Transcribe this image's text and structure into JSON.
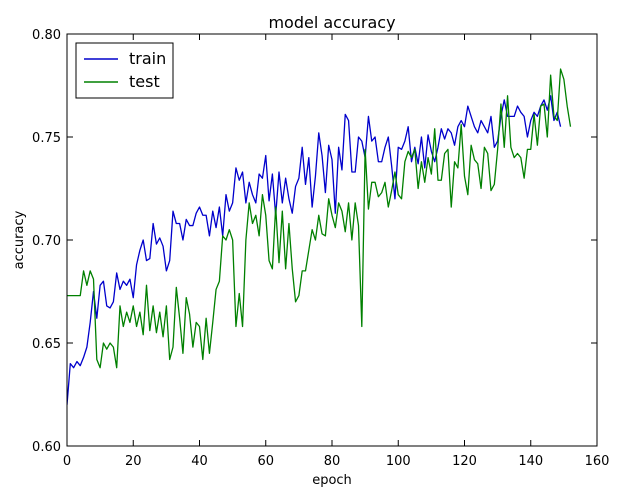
{
  "chart_data": {
    "type": "line",
    "title": "model accuracy",
    "xlabel": "epoch",
    "ylabel": "accuracy",
    "xlim": [
      0,
      160
    ],
    "ylim": [
      0.6,
      0.8
    ],
    "xticks": [
      0,
      20,
      40,
      60,
      80,
      100,
      120,
      140,
      160
    ],
    "yticks": [
      0.6,
      0.65,
      0.7,
      0.75,
      0.8
    ],
    "xtick_labels": [
      "0",
      "20",
      "40",
      "60",
      "80",
      "100",
      "120",
      "140",
      "160"
    ],
    "ytick_labels": [
      "0.60",
      "0.65",
      "0.70",
      "0.75",
      "0.80"
    ],
    "legend_position": "top-left",
    "grid": false,
    "series": [
      {
        "name": "train",
        "color": "#0000cc",
        "values": [
          0.62,
          0.64,
          0.638,
          0.641,
          0.639,
          0.643,
          0.648,
          0.66,
          0.675,
          0.662,
          0.678,
          0.68,
          0.668,
          0.667,
          0.67,
          0.684,
          0.676,
          0.68,
          0.678,
          0.681,
          0.672,
          0.688,
          0.695,
          0.7,
          0.69,
          0.691,
          0.708,
          0.698,
          0.701,
          0.697,
          0.685,
          0.69,
          0.714,
          0.708,
          0.708,
          0.7,
          0.71,
          0.707,
          0.707,
          0.713,
          0.716,
          0.712,
          0.712,
          0.702,
          0.714,
          0.706,
          0.716,
          0.702,
          0.722,
          0.714,
          0.718,
          0.735,
          0.729,
          0.733,
          0.718,
          0.728,
          0.722,
          0.718,
          0.732,
          0.73,
          0.741,
          0.719,
          0.732,
          0.712,
          0.733,
          0.718,
          0.73,
          0.72,
          0.713,
          0.726,
          0.73,
          0.745,
          0.727,
          0.74,
          0.716,
          0.731,
          0.752,
          0.741,
          0.723,
          0.746,
          0.739,
          0.713,
          0.745,
          0.734,
          0.761,
          0.758,
          0.733,
          0.733,
          0.75,
          0.748,
          0.74,
          0.76,
          0.748,
          0.75,
          0.738,
          0.738,
          0.745,
          0.75,
          0.736,
          0.72,
          0.745,
          0.744,
          0.748,
          0.755,
          0.738,
          0.745,
          0.737,
          0.75,
          0.735,
          0.751,
          0.743,
          0.738,
          0.745,
          0.754,
          0.749,
          0.754,
          0.752,
          0.746,
          0.755,
          0.758,
          0.755,
          0.765,
          0.76,
          0.755,
          0.752,
          0.758,
          0.755,
          0.752,
          0.76,
          0.745,
          0.748,
          0.76,
          0.768,
          0.76,
          0.76,
          0.76,
          0.765,
          0.762,
          0.76,
          0.75,
          0.758,
          0.762,
          0.76,
          0.765,
          0.768,
          0.763,
          0.77,
          0.758,
          0.762,
          0.755
        ]
      },
      {
        "name": "test",
        "color": "#008000",
        "values": [
          0.673,
          0.673,
          0.673,
          0.673,
          0.673,
          0.685,
          0.678,
          0.685,
          0.681,
          0.642,
          0.638,
          0.65,
          0.647,
          0.65,
          0.648,
          0.638,
          0.668,
          0.658,
          0.665,
          0.66,
          0.668,
          0.658,
          0.665,
          0.654,
          0.678,
          0.656,
          0.668,
          0.655,
          0.665,
          0.653,
          0.668,
          0.642,
          0.648,
          0.677,
          0.662,
          0.645,
          0.672,
          0.664,
          0.648,
          0.66,
          0.658,
          0.642,
          0.662,
          0.645,
          0.66,
          0.676,
          0.68,
          0.702,
          0.7,
          0.705,
          0.7,
          0.658,
          0.674,
          0.658,
          0.7,
          0.718,
          0.708,
          0.712,
          0.702,
          0.722,
          0.712,
          0.69,
          0.686,
          0.716,
          0.689,
          0.714,
          0.686,
          0.708,
          0.686,
          0.67,
          0.673,
          0.685,
          0.685,
          0.695,
          0.705,
          0.7,
          0.712,
          0.703,
          0.702,
          0.72,
          0.712,
          0.706,
          0.718,
          0.714,
          0.704,
          0.718,
          0.7,
          0.718,
          0.707,
          0.658,
          0.744,
          0.715,
          0.728,
          0.728,
          0.721,
          0.723,
          0.728,
          0.716,
          0.724,
          0.733,
          0.722,
          0.72,
          0.738,
          0.743,
          0.74,
          0.744,
          0.725,
          0.738,
          0.728,
          0.74,
          0.732,
          0.754,
          0.729,
          0.729,
          0.742,
          0.744,
          0.716,
          0.738,
          0.735,
          0.756,
          0.731,
          0.722,
          0.746,
          0.739,
          0.737,
          0.725,
          0.745,
          0.742,
          0.724,
          0.727,
          0.744,
          0.766,
          0.745,
          0.77,
          0.745,
          0.74,
          0.742,
          0.74,
          0.73,
          0.744,
          0.744,
          0.761,
          0.746,
          0.765,
          0.766,
          0.75,
          0.78,
          0.76,
          0.758,
          0.783,
          0.778,
          0.765,
          0.755
        ]
      }
    ]
  }
}
